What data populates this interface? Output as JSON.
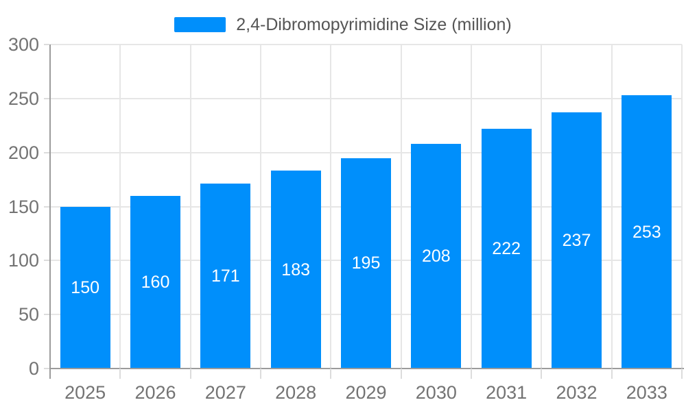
{
  "chart_data": {
    "type": "bar",
    "title": "",
    "xlabel": "",
    "ylabel": "",
    "categories": [
      "2025",
      "2026",
      "2027",
      "2028",
      "2029",
      "2030",
      "2031",
      "2032",
      "2033"
    ],
    "series": [
      {
        "name": "2,4-Dibromopyrimidine Size (million)",
        "values": [
          150,
          160,
          171,
          183,
          195,
          208,
          222,
          237,
          253
        ]
      }
    ],
    "value_labels_shown": true,
    "ylim": [
      0,
      300
    ],
    "ytick_step": 50,
    "yticks": [
      0,
      50,
      100,
      150,
      200,
      250,
      300
    ],
    "grid": true,
    "legend_position": "top",
    "colors": {
      "bar": "#008FFB",
      "value_label": "#ffffff",
      "axis_label": "#737373",
      "legend_text": "#555555",
      "grid_line": "#e6e6e6",
      "tick_line": "#dcdcdc",
      "axis_line": "#9b9b9b",
      "background": "#ffffff"
    }
  }
}
